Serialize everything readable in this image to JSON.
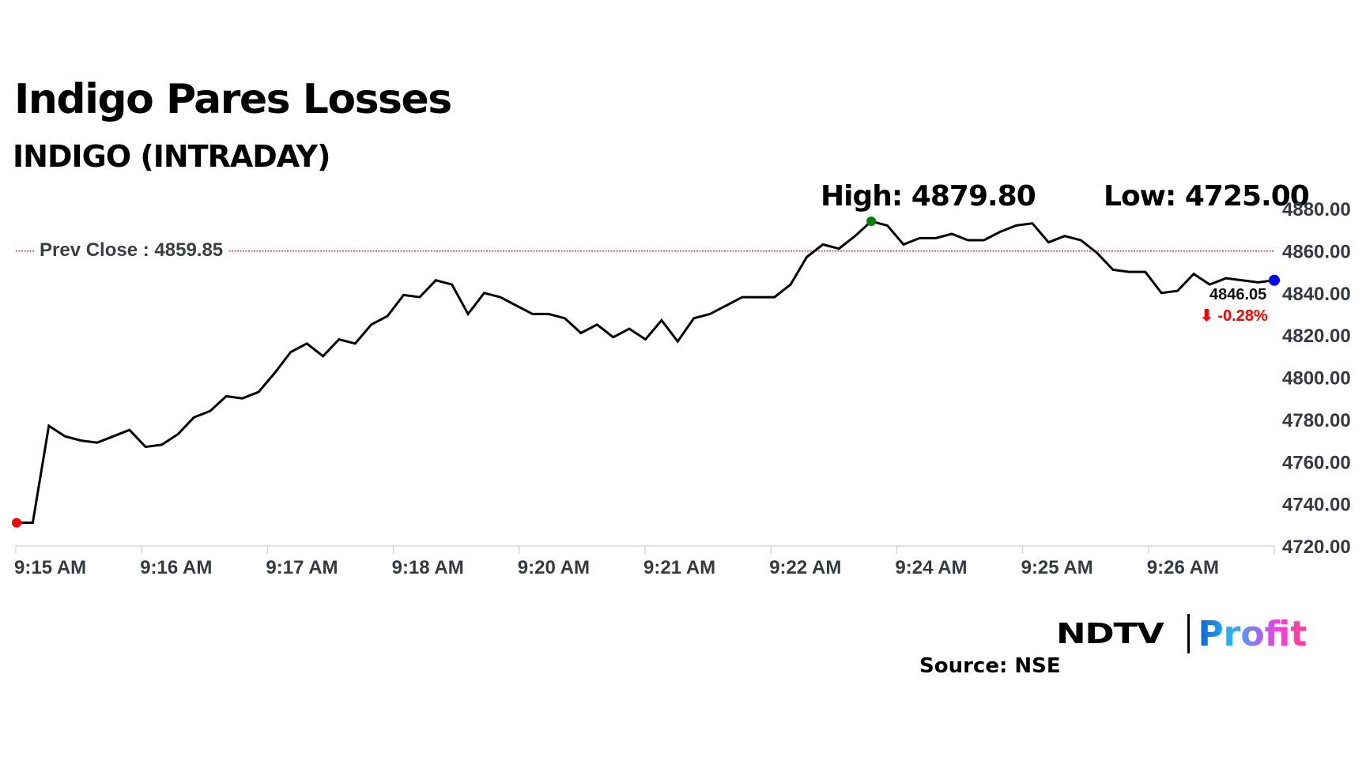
{
  "header": {
    "title": "Indigo Pares Losses",
    "subtitle": "INDIGO (INTRADAY)",
    "high_label": "High: 4879.80",
    "low_label": "Low: 4725.00"
  },
  "annotations": {
    "prev_close_label": "Prev Close : 4859.85",
    "last_price": "4846.05",
    "change": "⬇ -0.28%",
    "change_color": "#ff0000"
  },
  "footer": {
    "brand_left": "NDTV",
    "brand_right": "Profit",
    "source": "Source: NSE"
  },
  "colors": {
    "line": "#000000",
    "start_marker": "#ff0000",
    "high_marker": "#008000",
    "end_marker": "#0000ff",
    "prev_close_line": "#ff0000",
    "axis_text": "#343a3d"
  },
  "chart_data": {
    "type": "line",
    "title": "Indigo Pares Losses",
    "subtitle": "INDIGO (INTRADAY)",
    "xlabel": "",
    "ylabel": "",
    "ylim": [
      4720,
      4880
    ],
    "yticks": [
      "4880.00",
      "4860.00",
      "4840.00",
      "4820.00",
      "4800.00",
      "4780.00",
      "4760.00",
      "4740.00",
      "4720.00"
    ],
    "xticks": [
      "9:15 AM",
      "9:16 AM",
      "9:17 AM",
      "9:18 AM",
      "9:20 AM",
      "9:21 AM",
      "9:22 AM",
      "9:24 AM",
      "9:25 AM",
      "9:26 AM"
    ],
    "grid": false,
    "legend": null,
    "prev_close": 4859.85,
    "high": 4879.8,
    "low": 4725.0,
    "last": 4846.05,
    "change_pct": -0.28,
    "series": [
      {
        "name": "INDIGO",
        "values": [
          4731,
          4731,
          4777,
          4772,
          4770,
          4769,
          4772,
          4775,
          4767,
          4768,
          4773,
          4781,
          4784,
          4791,
          4790,
          4793,
          4802,
          4812,
          4816,
          4810,
          4818,
          4816,
          4825,
          4829,
          4839,
          4838,
          4846,
          4844,
          4830,
          4840,
          4838,
          4834,
          4830,
          4830,
          4828,
          4821,
          4825,
          4819,
          4823,
          4818,
          4827,
          4817,
          4828,
          4830,
          4834,
          4838,
          4838,
          4838,
          4844,
          4857,
          4863,
          4861,
          4867,
          4874,
          4872,
          4863,
          4866,
          4866,
          4868,
          4865,
          4865,
          4869,
          4872,
          4873,
          4864,
          4867,
          4865,
          4859,
          4851,
          4850,
          4850,
          4840,
          4841,
          4849,
          4844,
          4847,
          4846,
          4845,
          4846
        ]
      }
    ]
  }
}
